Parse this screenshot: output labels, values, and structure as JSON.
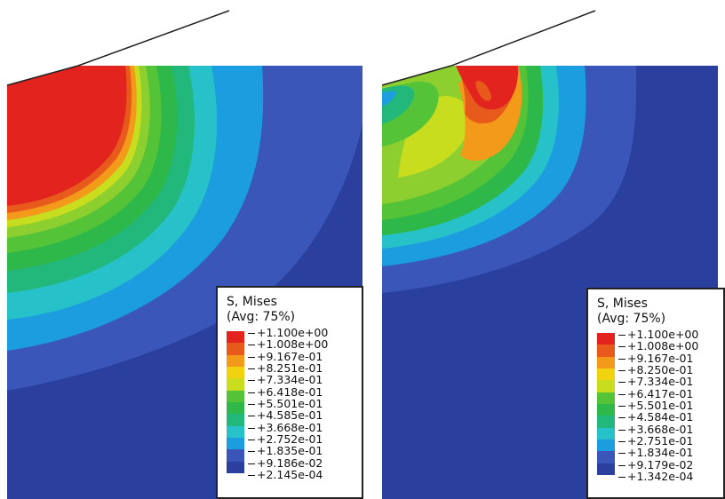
{
  "colors": {
    "band_0": "#2a3f9e",
    "band_1": "#3a56b8",
    "band_2": "#1b9de0",
    "band_3": "#27c2c9",
    "band_4": "#22b87c",
    "band_5": "#2eb84a",
    "band_6": "#55c338",
    "band_7": "#8ccf2f",
    "band_8": "#c9dd1f",
    "band_9": "#f0d20e",
    "band_10": "#f39a1b",
    "band_11": "#e85a1c",
    "band_12": "#e3231e",
    "tool_line": "#222222"
  },
  "panels": [
    {
      "id": "left",
      "legend": {
        "title_line1": "S, Mises",
        "title_line2": "(Avg: 75%)",
        "values": [
          "+1.100e+00",
          "+1.008e+00",
          "+9.167e-01",
          "+8.251e-01",
          "+7.334e-01",
          "+6.418e-01",
          "+5.501e-01",
          "+4.585e-01",
          "+3.668e-01",
          "+2.752e-01",
          "+1.835e-01",
          "+9.186e-02",
          "+2.145e-04"
        ]
      }
    },
    {
      "id": "right",
      "legend": {
        "title_line1": "S, Mises",
        "title_line2": "(Avg: 75%)",
        "values": [
          "+1.100e+00",
          "+1.008e+00",
          "+9.167e-01",
          "+8.250e-01",
          "+7.334e-01",
          "+6.417e-01",
          "+5.501e-01",
          "+4.584e-01",
          "+3.668e-01",
          "+2.751e-01",
          "+1.834e-01",
          "+9.179e-02",
          "+1.342e-04"
        ]
      }
    }
  ]
}
